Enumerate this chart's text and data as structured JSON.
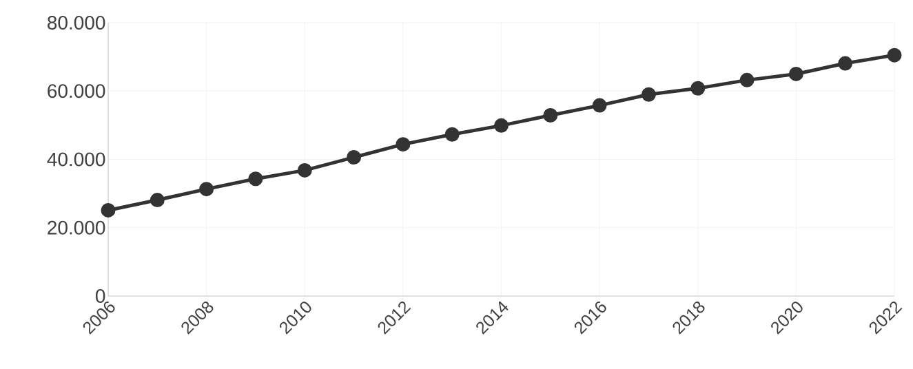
{
  "chart_data": {
    "type": "line",
    "x": [
      2006,
      2007,
      2008,
      2009,
      2010,
      2011,
      2012,
      2013,
      2014,
      2015,
      2016,
      2017,
      2018,
      2019,
      2020,
      2021,
      2022
    ],
    "values": [
      25100,
      28100,
      31300,
      34300,
      36800,
      40600,
      44400,
      47300,
      49900,
      52900,
      55800,
      59000,
      60800,
      63200,
      65000,
      68100,
      70500
    ],
    "color": "#333333",
    "marker": "circle",
    "grid": true,
    "xlim": [
      2006,
      2022
    ],
    "xticks": [
      2006,
      2008,
      2010,
      2012,
      2014,
      2016,
      2018,
      2020,
      2022
    ],
    "ylim": [
      0,
      80000
    ],
    "yticks": [
      0,
      {
        "value": 20000,
        "label": "20.000"
      },
      {
        "value": 40000,
        "label": "40.000"
      },
      {
        "value": 60000,
        "label": "60.000"
      },
      {
        "value": 80000,
        "label": "80.000"
      }
    ]
  }
}
